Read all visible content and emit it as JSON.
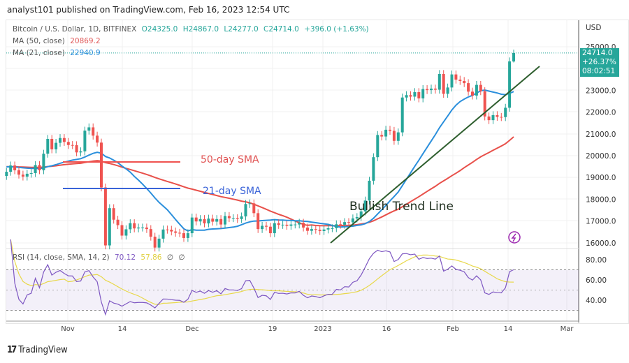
{
  "header": {
    "published": "analyst101 published on TradingView.com, Feb 16, 2023 12:54 UTC"
  },
  "legend": {
    "symbol": "Bitcoin / U.S. Dollar, 1D, BITFINEX",
    "open": "O24325.0",
    "high": "H24867.0",
    "low": "L24277.0",
    "close": "C24714.0",
    "change": "+396.0 (+1.63%)",
    "ma50_label": "MA (50, close)",
    "ma50_value": "20869.2",
    "ma21_label": "MA (21, close)",
    "ma21_value": "22940.9",
    "rsi_label": "RSI (14, close, SMA, 14, 2)",
    "rsi_value": "70.12",
    "rsi_sma_value": "57.86",
    "rsi_extra1": "∅",
    "rsi_extra2": "∅"
  },
  "price_tag": {
    "price": "24714.0",
    "change": "+26.37%",
    "countdown": "08:02:51"
  },
  "footer": {
    "brand": "TradingView"
  },
  "colors": {
    "up": "#26a69a",
    "down": "#ef5350",
    "ma50": "#e8504a",
    "ma21": "#2b8fdc",
    "rsi": "#7e57c2",
    "rsi_sma": "#e8d84a",
    "trend": "#2e5e2e"
  },
  "chart_data": {
    "type": "candlestick",
    "currency": "USD",
    "ylim": [
      15700,
      25700
    ],
    "yticks": [
      "25000.0",
      "23000.0",
      "22000.0",
      "21000.0",
      "20000.0",
      "19000.0",
      "18000.0",
      "17000.0",
      "16000.0"
    ],
    "xticks": [
      "Nov",
      "14",
      "Dec",
      "19",
      "2023",
      "16",
      "Feb",
      "14",
      "Mar"
    ],
    "rsi_ticks": [
      "80.00",
      "60.00",
      "40.00"
    ],
    "rsi_band": [
      30,
      70
    ],
    "first_date": "2022-10-16",
    "last_candle": {
      "open": 24325.0,
      "high": 24867.0,
      "low": 24277.0,
      "close": 24714.0
    },
    "close": [
      19260,
      19550,
      19330,
      19130,
      19040,
      19170,
      19200,
      19570,
      19330,
      20090,
      20770,
      20290,
      20590,
      20810,
      20630,
      20490,
      20480,
      20150,
      20200,
      21150,
      21300,
      20920,
      20600,
      18540,
      15880,
      17590,
      17060,
      16810,
      16330,
      16620,
      16900,
      16660,
      16700,
      16700,
      16630,
      16280,
      15780,
      16190,
      16610,
      16600,
      16520,
      16460,
      16440,
      16220,
      16440,
      17160,
      16980,
      17090,
      16890,
      17110,
      16970,
      17090,
      16840,
      17230,
      17130,
      17130,
      17090,
      17210,
      17780,
      17810,
      17360,
      16630,
      16780,
      16740,
      16440,
      16900,
      16820,
      16830,
      16780,
      16840,
      16840,
      16920,
      16700,
      16550,
      16630,
      16600,
      16540,
      16610,
      16670,
      16670,
      16850,
      16830,
      16950,
      16940,
      17120,
      17180,
      17440,
      17940,
      18850,
      19930,
      20950,
      20880,
      21190,
      21140,
      20680,
      21070,
      22670,
      22780,
      22710,
      22920,
      22630,
      23060,
      23010,
      23080,
      23030,
      23750,
      22840,
      23130,
      23730,
      23490,
      23430,
      23330,
      22940,
      22760,
      23250,
      22960,
      21800,
      21630,
      21860,
      21780,
      21770,
      22200,
      24330,
      24714
    ],
    "annotations": {
      "sma50_text": "50-day SMA",
      "sma21_text": "21-day SMA",
      "trend_text": "Bullish Trend Line"
    }
  }
}
